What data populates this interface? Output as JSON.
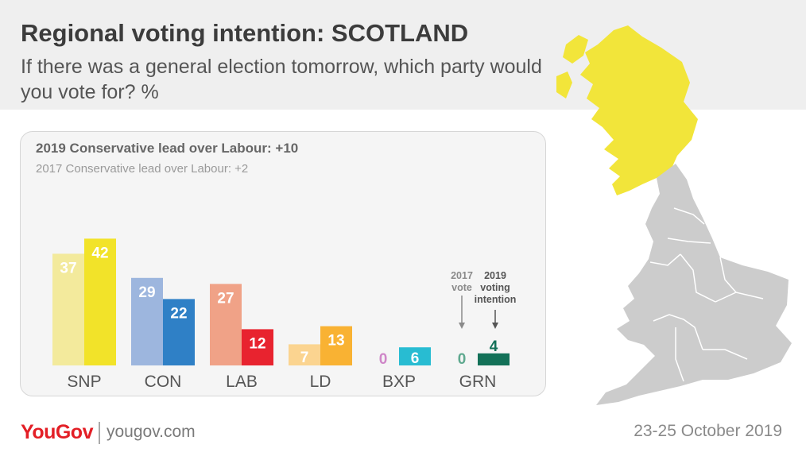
{
  "header": {
    "title": "Regional voting intention: SCOTLAND",
    "subtitle": "If there was a general election tomorrow, which party would you vote for? %"
  },
  "panel": {
    "lead_2019": "2019 Conservative lead over Labour: +10",
    "lead_2017": "2017 Conservative lead over Labour: +2"
  },
  "annotations": {
    "label_2017": [
      "2017",
      "vote"
    ],
    "label_2019": [
      "2019",
      "voting",
      "intention"
    ]
  },
  "map": {
    "highlight_region": "Scotland",
    "highlight_color": "#f2e53a",
    "other_color": "#cccccc"
  },
  "footer": {
    "logo": "YouGov",
    "url": "yougov.com",
    "date": "23-25 October 2019"
  },
  "chart_data": {
    "type": "bar",
    "title": "Regional voting intention: SCOTLAND",
    "categories": [
      "SNP",
      "CON",
      "LAB",
      "LD",
      "BXP",
      "GRN"
    ],
    "series": [
      {
        "name": "2017 vote",
        "values": [
          37,
          29,
          27,
          7,
          0,
          0
        ]
      },
      {
        "name": "2019 voting intention",
        "values": [
          42,
          22,
          12,
          13,
          6,
          4
        ]
      }
    ],
    "colors_2017": [
      "#f3ea9c",
      "#9db6de",
      "#f0a287",
      "#fbd490",
      "#e3b1de",
      "#7fb9a4"
    ],
    "colors_2019": [
      "#f2e329",
      "#2f80c6",
      "#e8232f",
      "#f9b233",
      "#28bcd2",
      "#137158"
    ],
    "label_colors_2017": [
      "#ffffff",
      "#ffffff",
      "#ffffff",
      "#ffffff",
      "#cf86c8",
      "#5fa98f"
    ],
    "label_colors_2019": [
      "#ffffff",
      "#ffffff",
      "#ffffff",
      "#ffffff",
      "#ffffff",
      "#137158"
    ],
    "ylim": [
      0,
      45
    ]
  }
}
